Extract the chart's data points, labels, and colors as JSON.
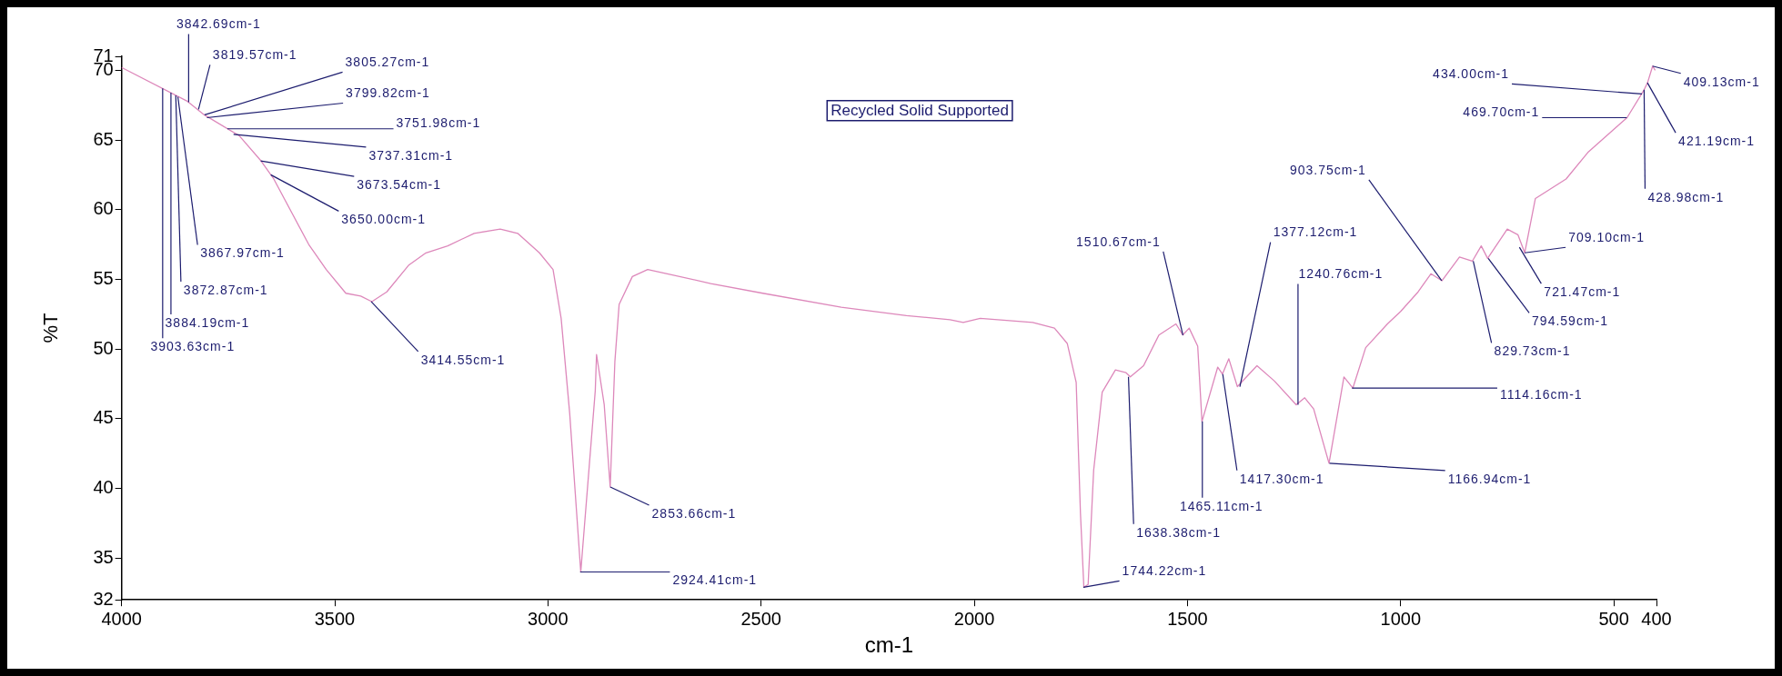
{
  "chart_data": {
    "type": "line",
    "title": "Recycled Solid Supported",
    "xlabel": "cm-1",
    "ylabel": "%T",
    "color": "#dd88bb",
    "marker": "none",
    "line_style": "solid",
    "grid": false,
    "legend": false,
    "xlim": [
      4000,
      400
    ],
    "xticks": [
      4000,
      3500,
      3000,
      2500,
      2000,
      1500,
      1000,
      500,
      400
    ],
    "ylim": [
      32,
      71
    ],
    "yticks": [
      32,
      35,
      40,
      45,
      50,
      55,
      60,
      65,
      70,
      71
    ],
    "x": [
      4000,
      3847,
      3806,
      3724,
      3673,
      3643,
      3561,
      3520,
      3474,
      3439,
      3413,
      3378,
      3327,
      3286,
      3235,
      3173,
      3112,
      3071,
      3020,
      2988,
      2969,
      2949,
      2923,
      2889,
      2886,
      2868,
      2854,
      2843,
      2833,
      2802,
      2766,
      2720,
      2618,
      2496,
      2312,
      2159,
      2057,
      2026,
      1986,
      1863,
      1812,
      1782,
      1761,
      1751,
      1743,
      1733,
      1720,
      1700,
      1669,
      1644,
      1634,
      1603,
      1567,
      1527,
      1511,
      1496,
      1476,
      1466,
      1429,
      1418,
      1403,
      1383,
      1337,
      1296,
      1245,
      1225,
      1204,
      1168,
      1133,
      1112,
      1082,
      1031,
      1000,
      959,
      929,
      903,
      862,
      832,
      811,
      796,
      750,
      725,
      709,
      684,
      612,
      561,
      469,
      429,
      421,
      409,
      403
    ],
    "values": [
      70.2,
      67.8,
      66.8,
      65.3,
      63.5,
      62.2,
      57.5,
      55.7,
      54.0,
      53.8,
      53.4,
      54.1,
      56.0,
      56.9,
      57.4,
      58.3,
      58.6,
      58.3,
      56.9,
      55.7,
      52.2,
      45.4,
      34.0,
      47.0,
      49.6,
      46.0,
      40.1,
      49.1,
      53.2,
      55.2,
      55.7,
      55.4,
      54.7,
      54.0,
      53.0,
      52.4,
      52.1,
      51.9,
      52.2,
      51.9,
      51.5,
      50.4,
      47.6,
      38.2,
      32.9,
      33.1,
      41.3,
      46.9,
      48.5,
      48.3,
      48.0,
      48.8,
      51.0,
      51.8,
      51.0,
      51.5,
      50.2,
      44.8,
      48.7,
      48.2,
      49.3,
      47.3,
      48.8,
      47.7,
      46.0,
      46.5,
      45.7,
      41.8,
      48.0,
      47.2,
      50.1,
      51.8,
      52.7,
      54.1,
      55.4,
      54.9,
      56.6,
      56.3,
      57.4,
      56.5,
      58.6,
      58.2,
      56.9,
      60.8,
      62.2,
      64.1,
      66.6,
      68.6,
      69.1,
      70.3,
      70.0
    ],
    "annotations": [
      {
        "text": "3842.69cm-1",
        "x": 3842.69,
        "y": 67.7
      },
      {
        "text": "3819.57cm-1",
        "x": 3819.57,
        "y": 67.2
      },
      {
        "text": "3805.27cm-1",
        "x": 3805.27,
        "y": 66.8
      },
      {
        "text": "3799.82cm-1",
        "x": 3799.82,
        "y": 66.6
      },
      {
        "text": "3751.98cm-1",
        "x": 3751.98,
        "y": 65.8
      },
      {
        "text": "3737.31cm-1",
        "x": 3737.31,
        "y": 65.4
      },
      {
        "text": "3673.54cm-1",
        "x": 3673.54,
        "y": 63.5
      },
      {
        "text": "3650.00cm-1",
        "x": 3650.0,
        "y": 62.5
      },
      {
        "text": "3867.97cm-1",
        "x": 3867.97,
        "y": 68.1
      },
      {
        "text": "3872.87cm-1",
        "x": 3872.87,
        "y": 68.2
      },
      {
        "text": "3884.19cm-1",
        "x": 3884.19,
        "y": 68.4
      },
      {
        "text": "3903.63cm-1",
        "x": 3903.63,
        "y": 68.7
      },
      {
        "text": "3414.55cm-1",
        "x": 3414.55,
        "y": 53.4
      },
      {
        "text": "2924.41cm-1",
        "x": 2924.41,
        "y": 34.0
      },
      {
        "text": "2853.66cm-1",
        "x": 2853.66,
        "y": 40.1
      },
      {
        "text": "1510.67cm-1",
        "x": 1510.67,
        "y": 51.0
      },
      {
        "text": "1638.38cm-1",
        "x": 1638.38,
        "y": 48.0
      },
      {
        "text": "1744.22cm-1",
        "x": 1744.22,
        "y": 32.9
      },
      {
        "text": "1465.11cm-1",
        "x": 1465.11,
        "y": 44.8
      },
      {
        "text": "1417.30cm-1",
        "x": 1417.3,
        "y": 48.2
      },
      {
        "text": "1377.12cm-1",
        "x": 1377.12,
        "y": 47.3
      },
      {
        "text": "1240.76cm-1",
        "x": 1240.76,
        "y": 46.0
      },
      {
        "text": "1166.94cm-1",
        "x": 1166.94,
        "y": 41.8
      },
      {
        "text": "1114.16cm-1",
        "x": 1114.16,
        "y": 47.2
      },
      {
        "text": "903.75cm-1",
        "x": 903.75,
        "y": 54.9
      },
      {
        "text": "829.73cm-1",
        "x": 829.73,
        "y": 56.3
      },
      {
        "text": "794.59cm-1",
        "x": 794.59,
        "y": 56.5
      },
      {
        "text": "721.47cm-1",
        "x": 721.47,
        "y": 57.3
      },
      {
        "text": "709.10cm-1",
        "x": 709.1,
        "y": 56.9
      },
      {
        "text": "469.70cm-1",
        "x": 469.7,
        "y": 66.6
      },
      {
        "text": "434.00cm-1",
        "x": 434.0,
        "y": 68.3
      },
      {
        "text": "428.98cm-1",
        "x": 428.98,
        "y": 68.6
      },
      {
        "text": "421.19cm-1",
        "x": 421.19,
        "y": 69.1
      },
      {
        "text": "409.13cm-1",
        "x": 409.13,
        "y": 70.3
      }
    ]
  }
}
